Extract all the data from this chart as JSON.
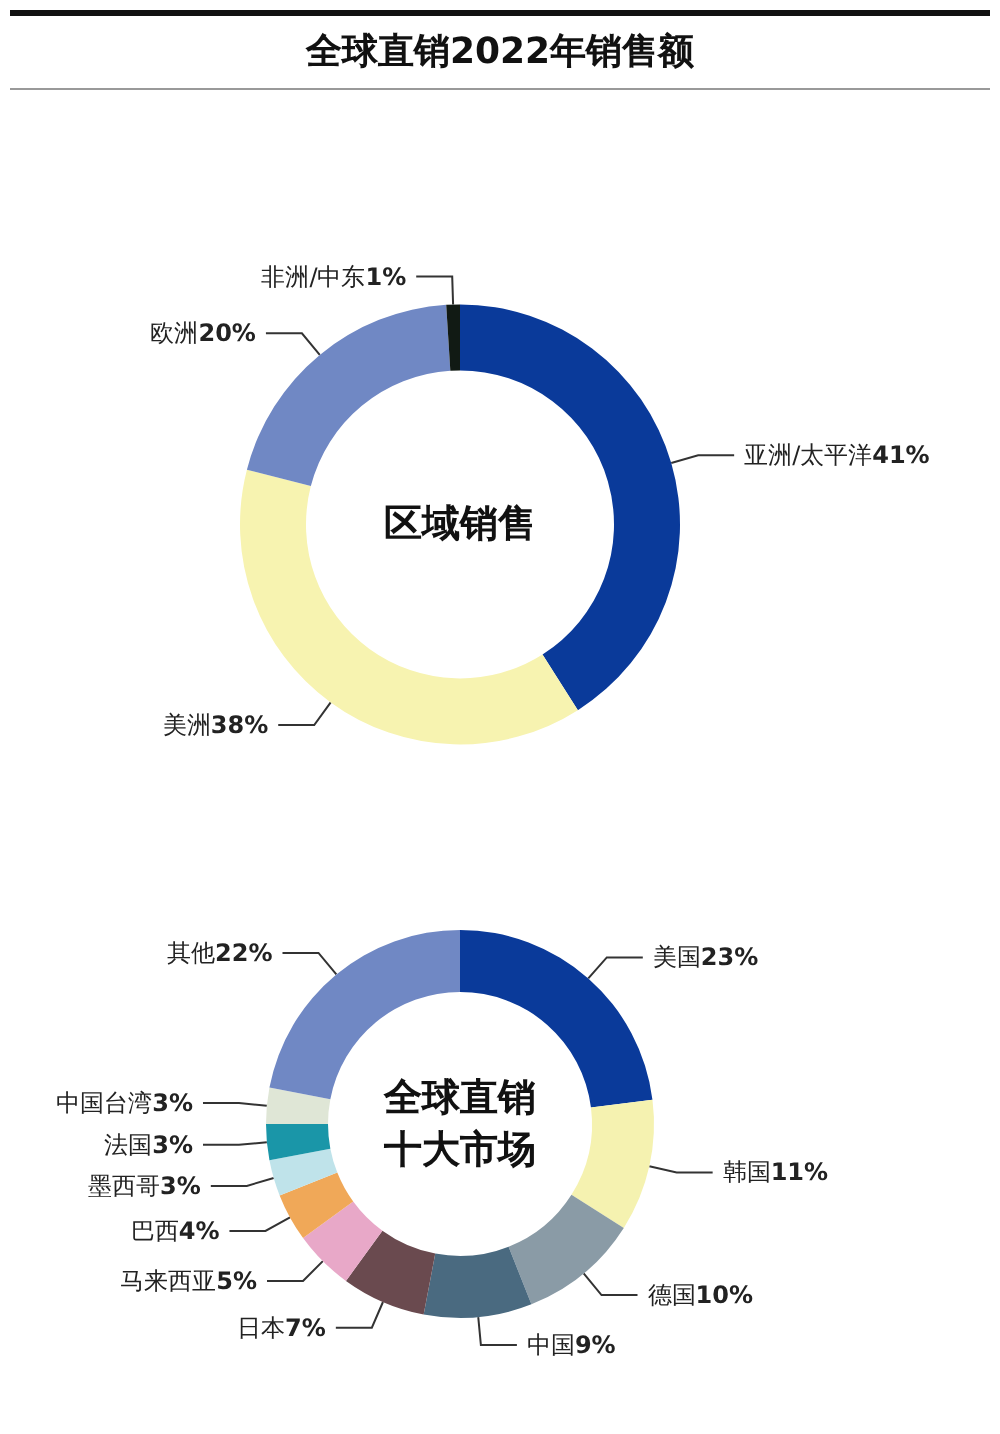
{
  "chart_data": [
    {
      "type": "donut",
      "title": "全球直销2022年销售额",
      "annotations": [
        "区域销售"
      ],
      "categories": [
        "亚洲/太平洋",
        "美洲",
        "欧洲",
        "非洲/中东"
      ],
      "values": [
        41,
        38,
        20,
        1
      ],
      "value_labels": [
        "41%",
        "38%",
        "20%",
        "1%"
      ],
      "colors": [
        "#0a3a9a",
        "#f7f3b0",
        "#7088c4",
        "#111a14"
      ]
    },
    {
      "type": "donut",
      "annotations": [
        "全球直销",
        "十大市场"
      ],
      "categories": [
        "美国",
        "韩国",
        "德国",
        "中国",
        "日本",
        "马来西亚",
        "巴西",
        "墨西哥",
        "法国",
        "中国台湾",
        "其他"
      ],
      "values": [
        23,
        11,
        10,
        9,
        7,
        5,
        4,
        3,
        3,
        3,
        22
      ],
      "value_labels": [
        "23%",
        "11%",
        "10%",
        "9%",
        "7%",
        "5%",
        "4%",
        "3%",
        "3%",
        "3%",
        "22%"
      ],
      "colors": [
        "#0a3a9a",
        "#f5f2b0",
        "#8a9ba6",
        "#4a6a80",
        "#6a4a4f",
        "#e8a8c8",
        "#f0a858",
        "#bfe3ea",
        "#1a96a8",
        "#dfe6d6",
        "#7088c4"
      ]
    }
  ]
}
